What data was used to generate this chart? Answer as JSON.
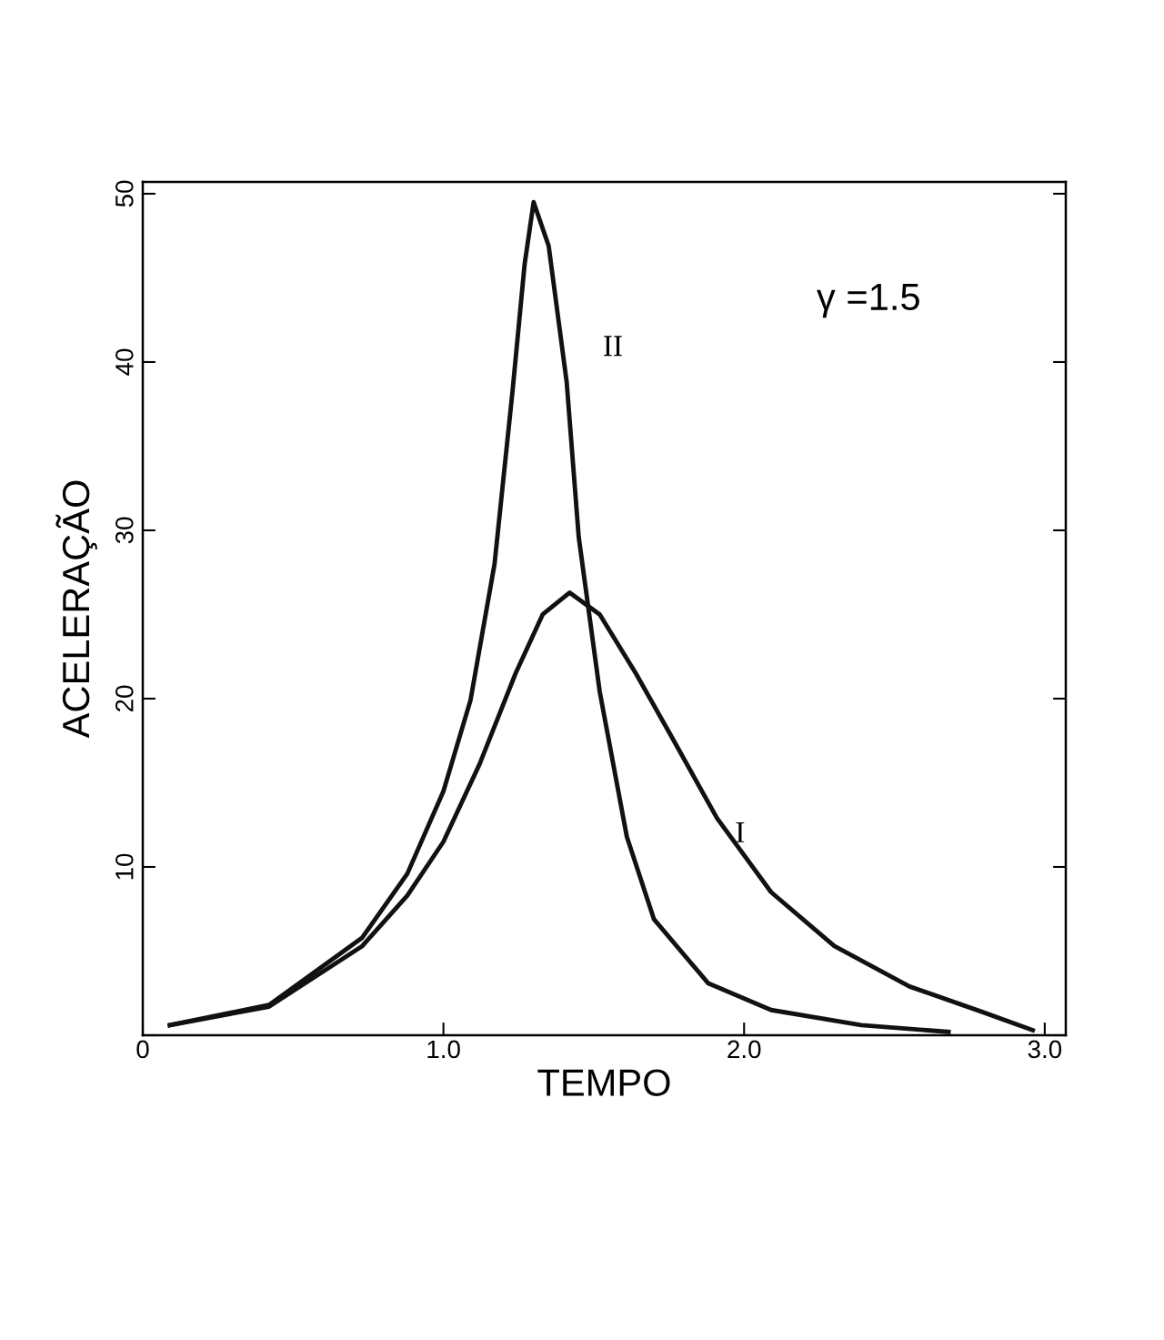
{
  "chart_data": {
    "type": "line",
    "xlabel": "TEMPO",
    "ylabel": "ACELERAÇÃO",
    "annotations": [
      "γ =1.5"
    ],
    "xlim": [
      0,
      3.07
    ],
    "ylim": [
      0,
      50.7
    ],
    "xticks": [
      0,
      {
        "value": 1,
        "label": "1.0"
      },
      {
        "value": 2,
        "label": "2.0"
      },
      {
        "value": 3,
        "label": "3.0"
      }
    ],
    "yticks": [
      {
        "value": 0,
        "label": null
      },
      10,
      20,
      30,
      40,
      50
    ],
    "grid": false,
    "legend": false,
    "marker": "none",
    "line_style": "solid",
    "series": [
      {
        "name": "I",
        "color": "#111111",
        "x": [
          0.09,
          0.42,
          0.73,
          0.88,
          1.0,
          1.12,
          1.24,
          1.33,
          1.42,
          1.52,
          1.64,
          1.76,
          1.91,
          2.09,
          2.3,
          2.55,
          2.79,
          2.96
        ],
        "values": [
          0.6,
          1.7,
          5.3,
          8.3,
          11.5,
          16.1,
          21.5,
          25.0,
          26.3,
          25.0,
          21.5,
          17.7,
          12.9,
          8.5,
          5.3,
          2.9,
          1.4,
          0.3
        ]
      },
      {
        "name": "II",
        "color": "#111111",
        "x": [
          0.09,
          0.42,
          0.73,
          0.88,
          1.0,
          1.09,
          1.17,
          1.23,
          1.27,
          1.3,
          1.35,
          1.41,
          1.45,
          1.52,
          1.61,
          1.7,
          1.88,
          2.09,
          2.39,
          2.68
        ],
        "values": [
          0.6,
          1.8,
          5.8,
          9.6,
          14.5,
          19.9,
          28,
          38.3,
          45.8,
          49.5,
          46.9,
          38.8,
          29.6,
          20.4,
          11.8,
          6.9,
          3.1,
          1.5,
          0.6,
          0.2
        ]
      }
    ]
  }
}
